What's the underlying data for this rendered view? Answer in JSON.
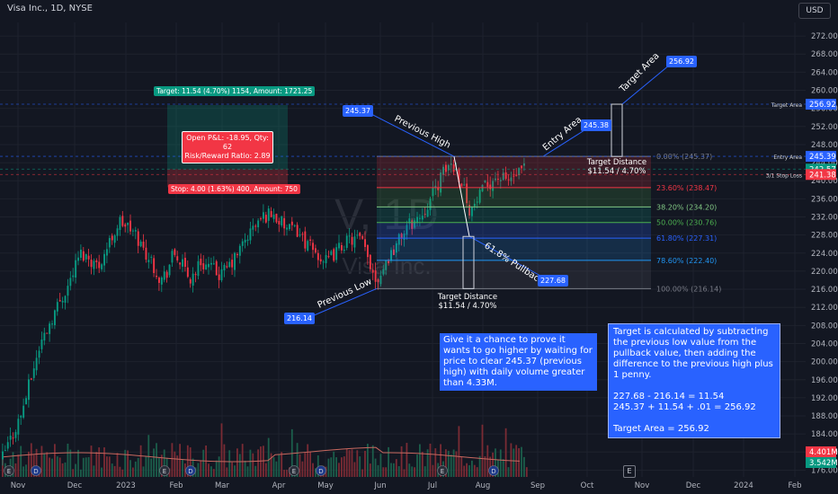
{
  "header": {
    "title": "Visa Inc., 1D, NYSE",
    "currency": "USD"
  },
  "watermark": {
    "symbol": "V, 1D",
    "name": "Visa Inc."
  },
  "chart_data": {
    "type": "candlestick",
    "y_ticks": [
      176,
      180,
      184,
      188,
      192,
      196,
      200,
      204,
      208,
      212,
      216,
      220,
      224,
      228,
      232,
      236,
      240,
      244,
      248,
      252,
      256,
      260,
      264,
      268,
      272
    ],
    "ylim": [
      174.5,
      275
    ],
    "x_ticks": [
      "Nov",
      "Dec",
      "2023",
      "Feb",
      "Mar",
      "Apr",
      "May",
      "Jun",
      "Jul",
      "Aug",
      "Sep",
      "Oct",
      "Nov",
      "Dec",
      "2024",
      "Feb"
    ],
    "price_path": [
      {
        "x": 0,
        "y": 178
      },
      {
        "x": 22,
        "y": 188
      },
      {
        "x": 44,
        "y": 204
      },
      {
        "x": 62,
        "y": 212
      },
      {
        "x": 75,
        "y": 217
      },
      {
        "x": 88,
        "y": 224
      },
      {
        "x": 98,
        "y": 223
      },
      {
        "x": 108,
        "y": 221
      },
      {
        "x": 120,
        "y": 226
      },
      {
        "x": 132,
        "y": 231
      },
      {
        "x": 140,
        "y": 230
      },
      {
        "x": 150,
        "y": 228
      },
      {
        "x": 158,
        "y": 225
      },
      {
        "x": 168,
        "y": 222
      },
      {
        "x": 178,
        "y": 218
      },
      {
        "x": 185,
        "y": 220
      },
      {
        "x": 192,
        "y": 224
      },
      {
        "x": 200,
        "y": 222
      },
      {
        "x": 210,
        "y": 218
      },
      {
        "x": 222,
        "y": 222
      },
      {
        "x": 232,
        "y": 221
      },
      {
        "x": 244,
        "y": 219
      },
      {
        "x": 258,
        "y": 222
      },
      {
        "x": 272,
        "y": 227
      },
      {
        "x": 282,
        "y": 230
      },
      {
        "x": 292,
        "y": 232
      },
      {
        "x": 300,
        "y": 233
      },
      {
        "x": 310,
        "y": 231
      },
      {
        "x": 320,
        "y": 229
      },
      {
        "x": 330,
        "y": 229
      },
      {
        "x": 340,
        "y": 226
      },
      {
        "x": 350,
        "y": 224
      },
      {
        "x": 362,
        "y": 222
      },
      {
        "x": 372,
        "y": 224
      },
      {
        "x": 380,
        "y": 226
      },
      {
        "x": 390,
        "y": 227
      },
      {
        "x": 400,
        "y": 227
      },
      {
        "x": 410,
        "y": 222
      },
      {
        "x": 418,
        "y": 218
      },
      {
        "x": 428,
        "y": 222
      },
      {
        "x": 440,
        "y": 226
      },
      {
        "x": 452,
        "y": 230
      },
      {
        "x": 466,
        "y": 232
      },
      {
        "x": 478,
        "y": 236
      },
      {
        "x": 490,
        "y": 241
      },
      {
        "x": 500,
        "y": 244
      },
      {
        "x": 508,
        "y": 242
      },
      {
        "x": 516,
        "y": 238
      },
      {
        "x": 522,
        "y": 233
      },
      {
        "x": 528,
        "y": 235
      },
      {
        "x": 540,
        "y": 239
      },
      {
        "x": 552,
        "y": 241
      },
      {
        "x": 562,
        "y": 240
      },
      {
        "x": 572,
        "y": 241
      },
      {
        "x": 584,
        "y": 242.6
      }
    ],
    "volume": {
      "current_label": "4.401M",
      "average_label": "3.542M"
    },
    "fib_levels": [
      {
        "label": "0.00% (245.37)",
        "value": 245.37
      },
      {
        "label": "23.60% (238.47)",
        "value": 238.47
      },
      {
        "label": "38.20% (234.20)",
        "value": 234.2
      },
      {
        "label": "50.00% (230.76)",
        "value": 230.76
      },
      {
        "label": "61.80% (227.31)",
        "value": 227.31
      },
      {
        "label": "78.60% (222.40)",
        "value": 222.4
      },
      {
        "label": "100.00% (216.14)",
        "value": 216.14
      }
    ],
    "price_labels": [
      {
        "value": 256.92,
        "text": "256.92",
        "color": "#2962ff",
        "side_label": "Target Area"
      },
      {
        "value": 245.39,
        "text": "245.39",
        "color": "#2962ff",
        "side_label": "Entry Area"
      },
      {
        "value": 242.57,
        "text": "242.57",
        "color": "#089981",
        "side_label": ""
      },
      {
        "value": 241.38,
        "text": "241.38",
        "color": "#f23645",
        "side_label": "3/1 Stop Loss"
      }
    ],
    "annotations": {
      "previous_high": "Previous High",
      "previous_low": "Previous Low",
      "entry_area": "Entry Area",
      "target_area": "Target Area",
      "pullback": "61.8% Pullback",
      "target_distance_label": "Target Distance",
      "target_distance_value": "$11.54 / 4.70%",
      "tag_245_37": "245.37",
      "tag_216_14": "216.14",
      "tag_227_68": "227.68",
      "tag_245_38": "245.38",
      "tag_256_92": "256.92"
    }
  },
  "position": {
    "target_label": "Target: 11.54 (4.70%) 1154, Amount: 1721.25",
    "stop_label": "Stop: 4.00 (1.63%) 400, Amount: 750",
    "pnl_line1": "Open P&L: -18.95, Qty: 62",
    "pnl_line2": "Risk/Reward Ratio: 2.89"
  },
  "notes": {
    "left": "Give it a chance to prove it wants to go higher by waiting for price to clear 245.37 (previous high) with daily volume greater than 4.33M.",
    "right": "Target is calculated by subtracting the previous low value from the pullback value, then adding the difference to the previous high plus 1 penny.\n\n227.68 - 216.14 = 11.54\n245.37 + 11.54 + .01 = 256.92\n\nTarget Area = 256.92"
  },
  "event_markers": [
    "E",
    "D"
  ]
}
